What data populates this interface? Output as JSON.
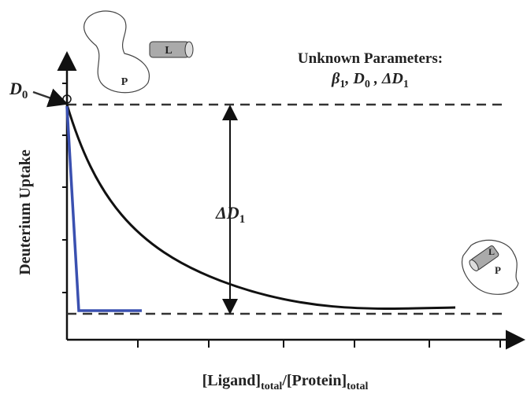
{
  "header": {
    "title": "Unknown Parameters:",
    "parameters": [
      "β",
      "1",
      ", D",
      "0",
      " , ΔD",
      "1"
    ]
  },
  "labels": {
    "d0": [
      "D",
      "0"
    ],
    "delta_d1": [
      "ΔD",
      "1"
    ]
  },
  "axes": {
    "y_label": "Deuterium Uptake",
    "x_label": [
      "[Ligand]",
      "total",
      "/[Protein]",
      "total"
    ]
  },
  "icons": {
    "free_protein": "P",
    "free_ligand": "L",
    "bound_protein": "P",
    "bound_ligand": "L"
  }
}
